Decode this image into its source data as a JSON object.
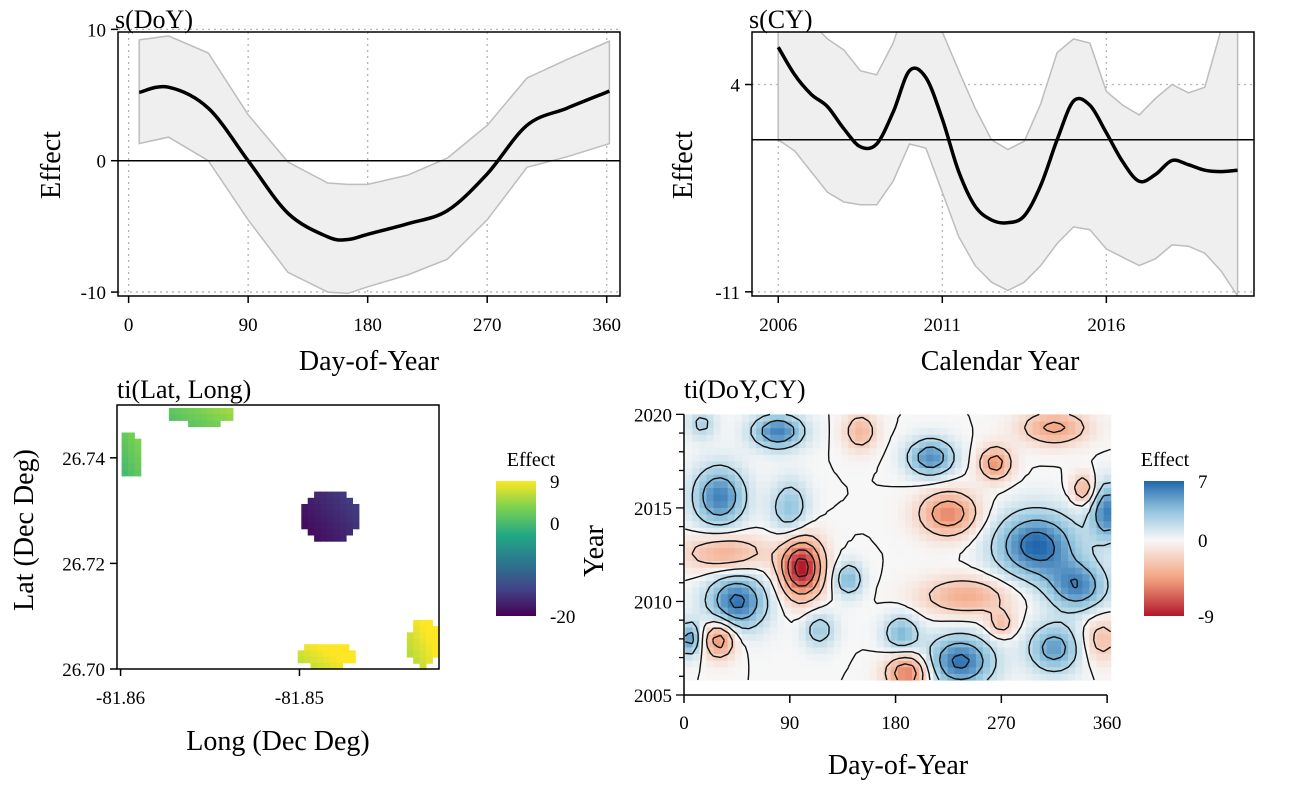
{
  "chart_data": [
    {
      "type": "line",
      "title": "s(DoY)",
      "xlabel": "Day-of-Year",
      "ylabel": "Effect",
      "xlim": [
        -8,
        370
      ],
      "ylim": [
        -10.3,
        9.8
      ],
      "xticks": [
        0,
        90,
        180,
        270,
        360
      ],
      "yticks": [
        -10,
        0,
        10
      ],
      "xgrid": [
        0,
        90,
        180,
        270,
        360
      ],
      "ygrid": [
        10,
        -10
      ],
      "hline": 0,
      "x": [
        8,
        30,
        60,
        90,
        120,
        150,
        165,
        180,
        210,
        240,
        270,
        300,
        330,
        362
      ],
      "y": [
        5.2,
        5.6,
        4.0,
        0.0,
        -4.0,
        -5.8,
        -6.0,
        -5.6,
        -4.8,
        -3.8,
        -1.0,
        2.7,
        4.0,
        5.3
      ],
      "lower": [
        1.3,
        1.8,
        0.0,
        -4.5,
        -8.5,
        -10.0,
        -10.1,
        -9.6,
        -8.7,
        -7.5,
        -4.5,
        -0.5,
        0.3,
        1.3
      ],
      "upper": [
        9.2,
        9.5,
        8.2,
        3.5,
        -0.1,
        -1.7,
        -1.8,
        -1.8,
        -1.1,
        0.2,
        2.7,
        6.3,
        7.7,
        9.1
      ]
    },
    {
      "type": "line",
      "title": "s(CY)",
      "xlabel": "Calendar Year",
      "ylabel": "Effect",
      "xlim": [
        2005.2,
        2020.5
      ],
      "ylim": [
        -11.3,
        7.8
      ],
      "xticks": [
        2006,
        2011,
        2016
      ],
      "yticks": [
        -11,
        4
      ],
      "xgrid": [
        2006,
        2011,
        2016
      ],
      "ygrid": [
        4,
        -11
      ],
      "hline": 0,
      "x": [
        2006.0,
        2006.5,
        2007.0,
        2007.5,
        2008.0,
        2008.5,
        2009.0,
        2009.5,
        2010.0,
        2010.5,
        2011.0,
        2011.5,
        2012.0,
        2012.5,
        2013.0,
        2013.5,
        2014.0,
        2014.5,
        2015.0,
        2015.5,
        2016.0,
        2016.5,
        2017.0,
        2017.5,
        2018.0,
        2018.5,
        2019.0,
        2019.5,
        2020.0
      ],
      "y": [
        6.7,
        4.7,
        3.3,
        2.4,
        0.8,
        -0.5,
        -0.3,
        2.0,
        5.0,
        4.5,
        1.5,
        -2.3,
        -4.8,
        -5.8,
        -6.0,
        -5.5,
        -3.3,
        0.0,
        2.8,
        2.5,
        0.5,
        -1.6,
        -3.0,
        -2.5,
        -1.5,
        -1.8,
        -2.2,
        -2.3,
        -2.2
      ],
      "lower": [
        0.0,
        -0.8,
        -2.3,
        -3.8,
        -4.5,
        -4.7,
        -4.7,
        -3.0,
        -0.3,
        -0.6,
        -3.8,
        -7.0,
        -9.1,
        -10.3,
        -10.9,
        -10.3,
        -9.1,
        -7.5,
        -6.3,
        -6.5,
        -7.9,
        -8.5,
        -9.1,
        -8.6,
        -7.6,
        -7.7,
        -8.2,
        -9.5,
        -11.3
      ],
      "upper": [
        13.5,
        10.5,
        8.5,
        7.3,
        6.5,
        5.0,
        4.7,
        7.0,
        10.5,
        9.3,
        7.8,
        5.0,
        2.3,
        0.0,
        -0.7,
        -0.1,
        2.6,
        6.3,
        7.3,
        7.0,
        3.5,
        2.5,
        1.8,
        3.0,
        4.0,
        3.4,
        3.8,
        8.0,
        15.0
      ]
    },
    {
      "type": "heatmap",
      "title": "ti(Lat, Long)",
      "xlabel": "Long (Dec Deg)",
      "ylabel": "Lat (Dec Deg)",
      "xlim": [
        -81.8602,
        -81.8422
      ],
      "ylim": [
        26.7,
        26.75
      ],
      "xticks": [
        -81.86,
        -81.85
      ],
      "yticks": [
        26.7,
        26.72,
        26.74
      ],
      "legend_title": "Effect",
      "legend_ticks": [
        9,
        0,
        -20
      ],
      "legend_range": [
        -20,
        9
      ],
      "legend_placement": "right",
      "color_scale": "viridis",
      "patches": [
        {
          "cx": -81.8595,
          "cy": 26.7405,
          "rx": 0.0008,
          "ry": 0.0043,
          "value": 1.5
        },
        {
          "cx": -81.8555,
          "cy": 26.7484,
          "rx": 0.0018,
          "ry": 0.0022,
          "value": 3.0
        },
        {
          "cx": -81.8483,
          "cy": 26.7288,
          "rx": 0.0016,
          "ry": 0.0048,
          "value": -17.0
        },
        {
          "cx": -81.8485,
          "cy": 26.7025,
          "rx": 0.0016,
          "ry": 0.0022,
          "value": 8.5
        },
        {
          "cx": -81.8431,
          "cy": 26.7048,
          "rx": 0.0009,
          "ry": 0.0045,
          "value": 8.0
        }
      ]
    },
    {
      "type": "heatmap",
      "title": "ti(DoY,CY)",
      "xlabel": "Day-of-Year",
      "ylabel": "Year",
      "xlim": [
        0,
        365
      ],
      "ylim": [
        2005,
        2020.5
      ],
      "xticks": [
        0,
        90,
        180,
        270,
        360
      ],
      "yticks": [
        2005,
        2010,
        2015,
        2020
      ],
      "legend_title": "Effect",
      "legend_ticks": [
        7,
        0,
        -9
      ],
      "legend_range": [
        -9,
        7
      ],
      "legend_placement": "right",
      "color_scale": "diverging red-white-blue",
      "contours": true,
      "blobs": [
        {
          "x": 80,
          "y": 2019.1,
          "rx": 22,
          "ry": 0.9,
          "v": 6.0
        },
        {
          "x": 150,
          "y": 2019.1,
          "rx": 14,
          "ry": 1.0,
          "v": -3.5
        },
        {
          "x": 315,
          "y": 2019.3,
          "rx": 28,
          "ry": 0.9,
          "v": -4.5
        },
        {
          "x": 30,
          "y": 2015.6,
          "rx": 22,
          "ry": 1.6,
          "v": 6.0
        },
        {
          "x": 90,
          "y": 2015.0,
          "rx": 16,
          "ry": 1.5,
          "v": 3.5
        },
        {
          "x": 210,
          "y": 2017.7,
          "rx": 20,
          "ry": 1.0,
          "v": 5.5
        },
        {
          "x": 265,
          "y": 2017.4,
          "rx": 14,
          "ry": 0.9,
          "v": -5.0
        },
        {
          "x": 225,
          "y": 2014.7,
          "rx": 25,
          "ry": 1.2,
          "v": -5.5
        },
        {
          "x": 300,
          "y": 2013.0,
          "rx": 35,
          "ry": 1.8,
          "v": 7.0
        },
        {
          "x": 360,
          "y": 2014.8,
          "rx": 14,
          "ry": 1.5,
          "v": 6.0
        },
        {
          "x": 340,
          "y": 2016.0,
          "rx": 10,
          "ry": 0.8,
          "v": -4.0
        },
        {
          "x": 100,
          "y": 2011.8,
          "rx": 18,
          "ry": 1.6,
          "v": -9.0
        },
        {
          "x": 35,
          "y": 2012.6,
          "rx": 35,
          "ry": 1.0,
          "v": -4.0
        },
        {
          "x": 45,
          "y": 2010.0,
          "rx": 25,
          "ry": 1.5,
          "v": 6.5
        },
        {
          "x": 140,
          "y": 2011.2,
          "rx": 12,
          "ry": 0.9,
          "v": 4.0
        },
        {
          "x": 240,
          "y": 2010.3,
          "rx": 38,
          "ry": 1.0,
          "v": -4.0
        },
        {
          "x": 335,
          "y": 2010.8,
          "rx": 25,
          "ry": 1.3,
          "v": 5.5
        },
        {
          "x": 30,
          "y": 2008.0,
          "rx": 14,
          "ry": 1.0,
          "v": -5.5
        },
        {
          "x": 115,
          "y": 2008.5,
          "rx": 14,
          "ry": 1.0,
          "v": 3.0
        },
        {
          "x": 185,
          "y": 2008.3,
          "rx": 15,
          "ry": 1.0,
          "v": 4.0
        },
        {
          "x": 235,
          "y": 2006.8,
          "rx": 28,
          "ry": 1.4,
          "v": 6.5
        },
        {
          "x": 190,
          "y": 2006.2,
          "rx": 18,
          "ry": 1.0,
          "v": -6.0
        },
        {
          "x": 315,
          "y": 2007.5,
          "rx": 22,
          "ry": 1.3,
          "v": 5.0
        },
        {
          "x": 5,
          "y": 2008.0,
          "rx": 10,
          "ry": 0.9,
          "v": 5.0
        },
        {
          "x": 355,
          "y": 2008.0,
          "rx": 16,
          "ry": 1.2,
          "v": -3.0
        },
        {
          "x": 270,
          "y": 2008.8,
          "rx": 12,
          "ry": 0.7,
          "v": -3.0
        },
        {
          "x": 15,
          "y": 2019.5,
          "rx": 12,
          "ry": 0.8,
          "v": 2.5
        }
      ]
    }
  ]
}
